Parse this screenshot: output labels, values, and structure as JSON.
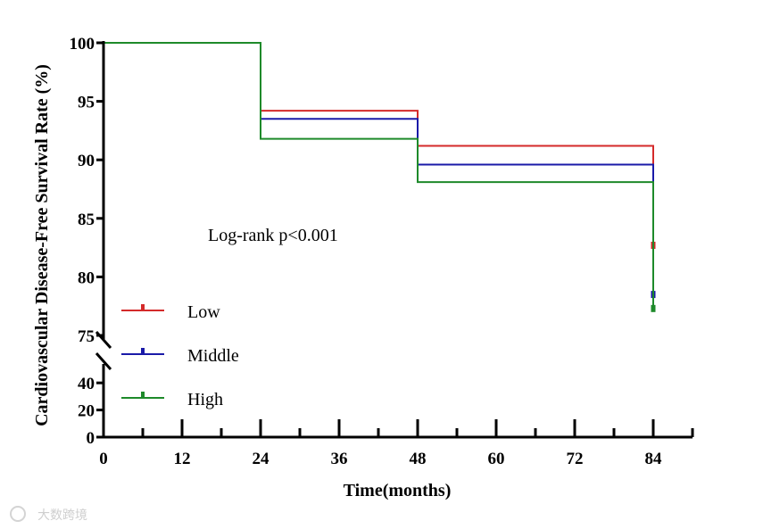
{
  "chart_data": {
    "type": "line",
    "step": true,
    "xlabel": "Time(months)",
    "ylabel": "Cardiovascular Disease-Free Survival Rate (%)",
    "x_ticks": [
      0,
      12,
      24,
      36,
      48,
      60,
      72,
      84
    ],
    "x_range": [
      0,
      90
    ],
    "y_axis_broken": true,
    "y_ticks_upper": [
      75,
      80,
      85,
      90,
      95,
      100
    ],
    "y_ticks_lower": [
      0,
      20,
      40
    ],
    "y_range_upper": [
      75,
      100
    ],
    "y_range_lower": [
      0,
      50
    ],
    "annotation": "Log-rank p<0.001",
    "legend_position": "bottom-left",
    "series": [
      {
        "name": "Low",
        "color": "#d42a2a",
        "steps": [
          [
            0,
            100
          ],
          [
            24,
            94.2
          ],
          [
            48,
            91.2
          ],
          [
            84,
            91.2
          ]
        ],
        "drop_to": 82.7,
        "censor_mark": 82.7
      },
      {
        "name": "Middle",
        "color": "#1a1aa8",
        "steps": [
          [
            0,
            100
          ],
          [
            24,
            93.5
          ],
          [
            48,
            89.6
          ],
          [
            84,
            89.6
          ]
        ],
        "drop_to": 78.5,
        "censor_mark": 78.5
      },
      {
        "name": "High",
        "color": "#1e8a2a",
        "steps": [
          [
            0,
            100
          ],
          [
            24,
            91.8
          ],
          [
            48,
            88.1
          ],
          [
            84,
            88.1
          ]
        ],
        "drop_to": 77.3,
        "censor_mark": 77.3
      }
    ]
  },
  "watermark": "大数跨境"
}
